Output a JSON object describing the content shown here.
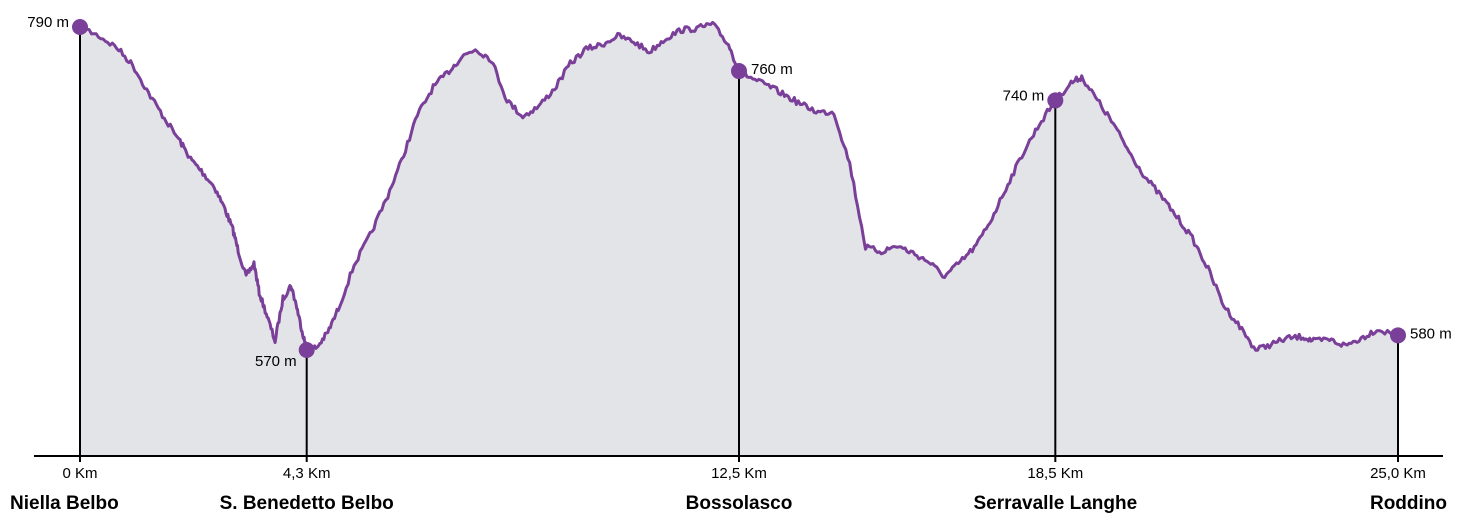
{
  "colors": {
    "line": "#7a3f98",
    "marker": "#7a3f98",
    "fill": "#e2e4e8",
    "axis": "#000000"
  },
  "chart_data": {
    "type": "area",
    "xunit": "Km",
    "yunit": "m",
    "xlim": [
      0,
      25
    ],
    "ylim": [
      500,
      800
    ],
    "grid": false,
    "profile": {
      "x": [
        0,
        0.35,
        0.7,
        1.0,
        1.3,
        1.6,
        1.9,
        2.1,
        2.3,
        2.55,
        2.75,
        2.9,
        3.0,
        3.15,
        3.3,
        3.4,
        3.55,
        3.7,
        3.85,
        4.0,
        4.1,
        4.2,
        4.3,
        4.5,
        4.7,
        4.9,
        5.2,
        5.5,
        5.8,
        6.1,
        6.4,
        6.7,
        7.0,
        7.25,
        7.5,
        7.8,
        8.1,
        8.4,
        8.7,
        9.0,
        9.3,
        9.6,
        9.9,
        10.2,
        10.5,
        10.8,
        11.1,
        11.4,
        11.7,
        12.0,
        12.3,
        12.5,
        12.8,
        13.1,
        13.4,
        13.7,
        14.0,
        14.3,
        14.6,
        14.9,
        15.2,
        15.5,
        15.8,
        16.1,
        16.4,
        16.7,
        17.0,
        17.3,
        17.6,
        17.9,
        18.2,
        18.5,
        18.8,
        19.0,
        19.3,
        19.6,
        19.9,
        20.2,
        20.5,
        20.8,
        21.1,
        21.4,
        21.7,
        22.0,
        22.3,
        22.6,
        22.9,
        23.2,
        23.4,
        23.7,
        24.0,
        24.3,
        24.6,
        25.0
      ],
      "y": [
        790,
        784,
        776,
        764,
        745,
        728,
        712,
        700,
        692,
        681,
        666,
        652,
        638,
        620,
        629,
        609,
        593,
        576,
        605,
        614,
        601,
        585,
        570,
        572,
        582,
        598,
        628,
        648,
        672,
        699,
        730,
        749,
        760,
        770,
        775,
        768,
        740,
        729,
        736,
        748,
        765,
        775,
        778,
        784,
        780,
        773,
        782,
        788,
        789,
        792,
        778,
        760,
        754,
        749,
        743,
        737,
        732,
        732,
        697,
        640,
        637,
        641,
        636,
        630,
        620,
        630,
        641,
        660,
        683,
        705,
        724,
        740,
        752,
        756,
        740,
        724,
        705,
        688,
        675,
        661,
        646,
        625,
        600,
        586,
        570,
        574,
        578,
        579,
        576,
        577,
        573,
        578,
        584,
        580
      ]
    },
    "points": [
      {
        "x": 0,
        "elevation": "790 m",
        "distance": "0 Km",
        "place": "Niella Belbo",
        "label_side": "left",
        "value": 790
      },
      {
        "x": 4.3,
        "elevation": "570 m",
        "distance": "4,3 Km",
        "place": "S. Benedetto Belbo",
        "label_side": "left-below",
        "value": 570
      },
      {
        "x": 12.5,
        "elevation": "760 m",
        "distance": "12,5 Km",
        "place": "Bossolasco",
        "label_side": "right",
        "value": 760
      },
      {
        "x": 18.5,
        "elevation": "740 m",
        "distance": "18,5 Km",
        "place": "Serravalle Langhe",
        "label_side": "left",
        "value": 740
      },
      {
        "x": 25.0,
        "elevation": "580 m",
        "distance": "25,0 Km",
        "place": "Roddino",
        "label_side": "right",
        "value": 580
      }
    ]
  }
}
